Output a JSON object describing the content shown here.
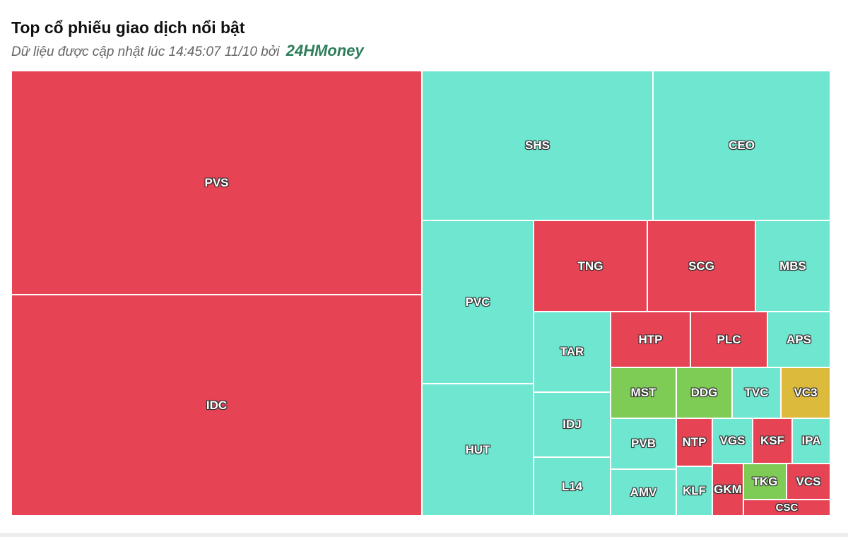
{
  "header": {
    "title": "Top cổ phiếu giao dịch nổi bật",
    "subtitle": "Dữ liệu được cập nhật lúc 14:45:07 11/10 bởi",
    "brand": "24HMoney"
  },
  "colors": {
    "down": "#e64455",
    "up": "#6ee6d0",
    "strong_up": "#7ecb56",
    "reference": "#dcba3c"
  },
  "chart_data": {
    "type": "treemap",
    "tiles": [
      {
        "label": "PVS",
        "status": "down"
      },
      {
        "label": "IDC",
        "status": "down"
      },
      {
        "label": "SHS",
        "status": "up"
      },
      {
        "label": "CEO",
        "status": "up"
      },
      {
        "label": "PVC",
        "status": "up"
      },
      {
        "label": "HUT",
        "status": "up"
      },
      {
        "label": "TNG",
        "status": "down"
      },
      {
        "label": "SCG",
        "status": "down"
      },
      {
        "label": "MBS",
        "status": "up"
      },
      {
        "label": "TAR",
        "status": "up"
      },
      {
        "label": "HTP",
        "status": "down"
      },
      {
        "label": "PLC",
        "status": "down"
      },
      {
        "label": "APS",
        "status": "up"
      },
      {
        "label": "MST",
        "status": "strong_up"
      },
      {
        "label": "DDG",
        "status": "strong_up"
      },
      {
        "label": "TVC",
        "status": "up"
      },
      {
        "label": "VC3",
        "status": "reference"
      },
      {
        "label": "IDJ",
        "status": "up"
      },
      {
        "label": "PVB",
        "status": "up"
      },
      {
        "label": "NTP",
        "status": "down"
      },
      {
        "label": "VGS",
        "status": "up"
      },
      {
        "label": "KSF",
        "status": "down"
      },
      {
        "label": "IPA",
        "status": "up"
      },
      {
        "label": "L14",
        "status": "up"
      },
      {
        "label": "AMV",
        "status": "up"
      },
      {
        "label": "KLF",
        "status": "up"
      },
      {
        "label": "GKM",
        "status": "down"
      },
      {
        "label": "TKG",
        "status": "strong_up"
      },
      {
        "label": "VCS",
        "status": "down"
      },
      {
        "label": "CSC",
        "status": "down"
      }
    ]
  }
}
